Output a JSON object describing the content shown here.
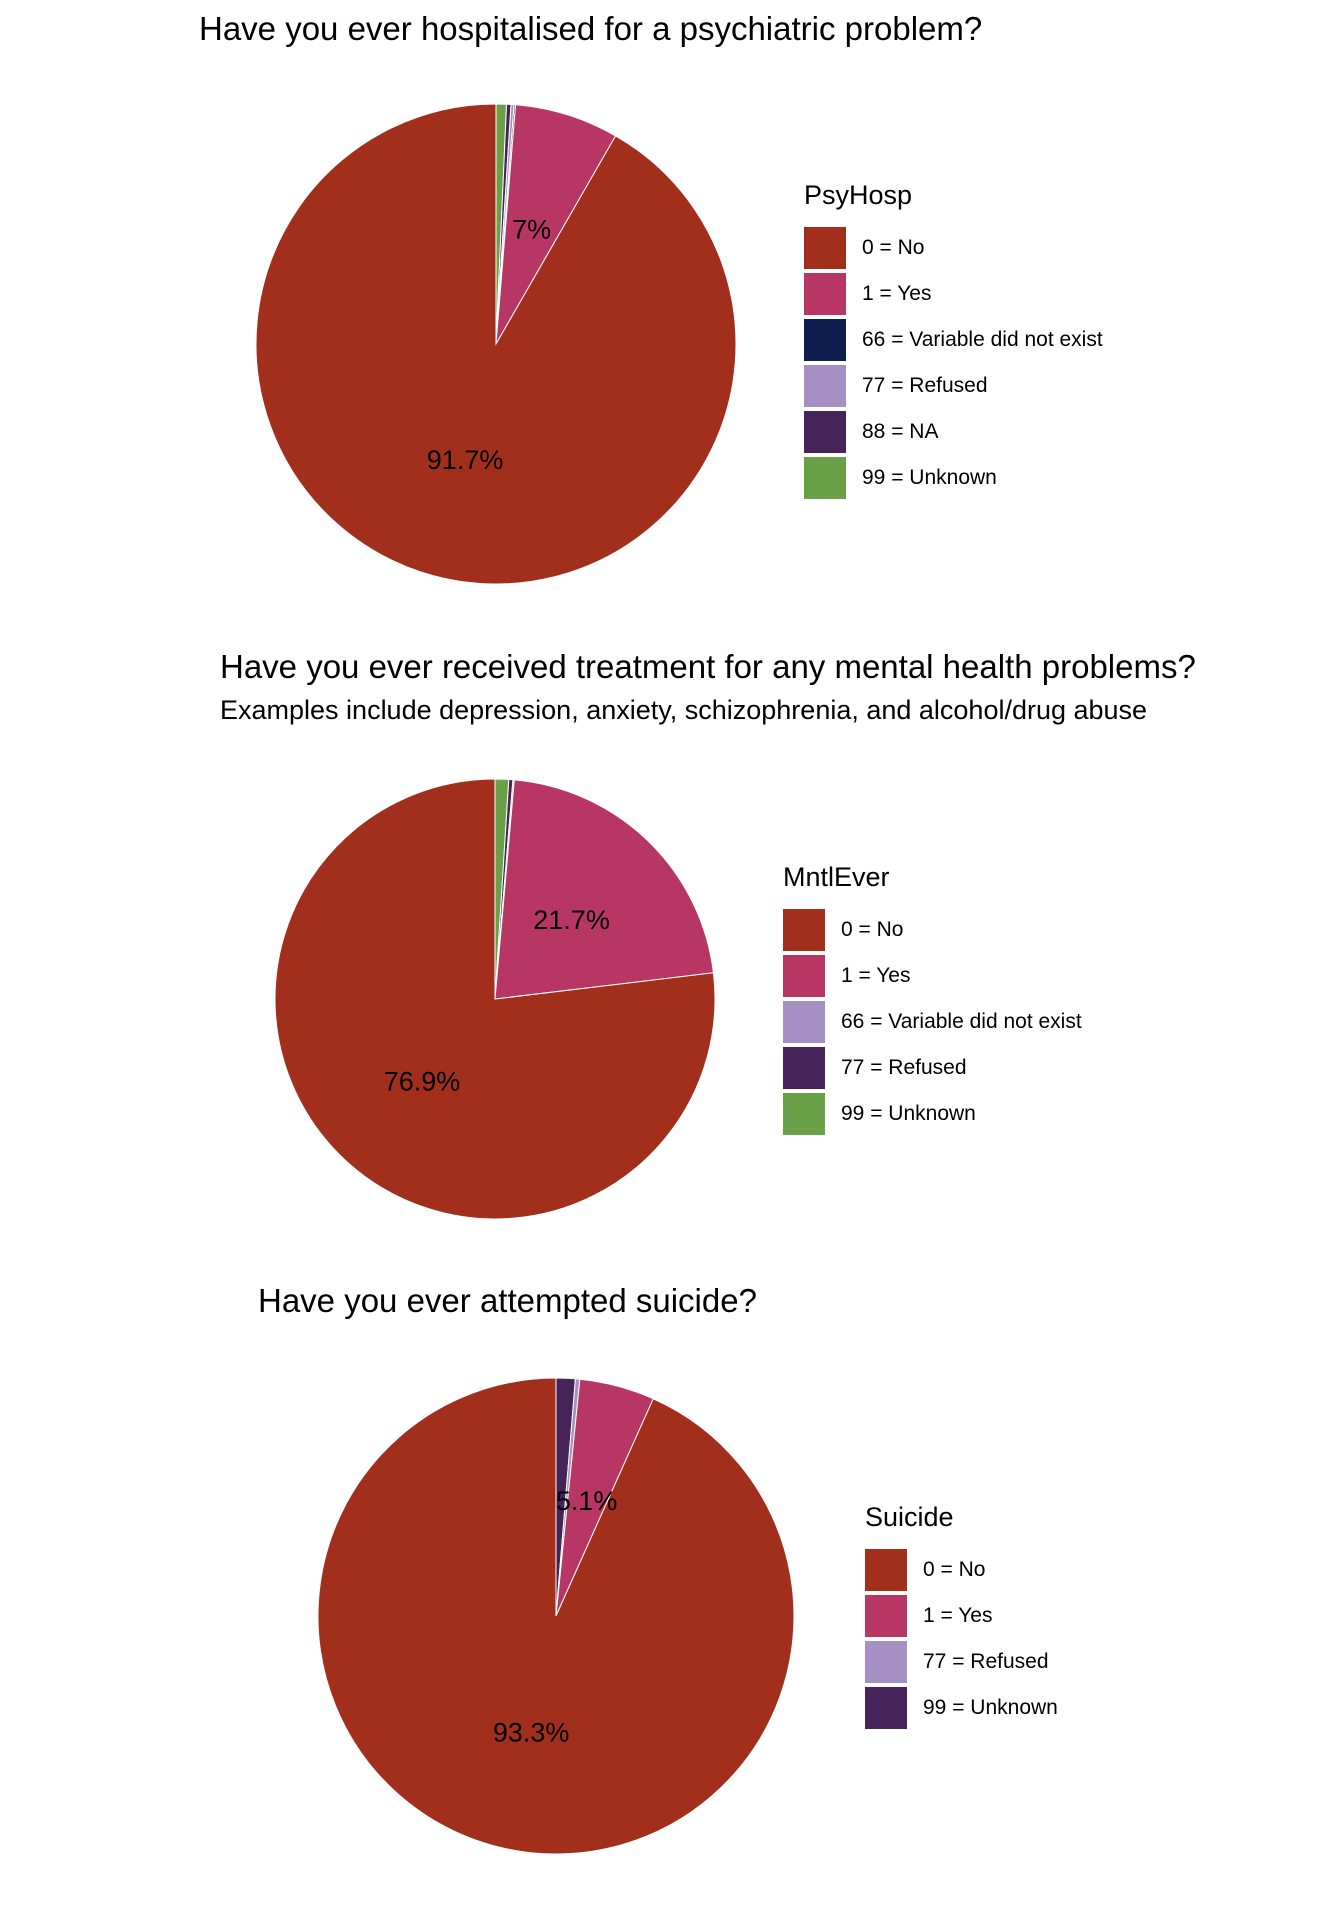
{
  "chart_data": [
    {
      "type": "pie",
      "title": "Have you ever hospitalised for a psychiatric problem?",
      "subtitle": "",
      "legend_title": "PsyHosp",
      "legend_position": "right",
      "categories": [
        "0 = No",
        "1 = Yes",
        "66 = Variable did not exist",
        "77 = Refused",
        "88 = NA",
        "99 = Unknown"
      ],
      "values": [
        91.7,
        7.0,
        0.1,
        0.2,
        0.3,
        0.7
      ],
      "colors": [
        "#A12F1C",
        "#B73663",
        "#0F1E4F",
        "#A68FC3",
        "#462359",
        "#6AA047"
      ],
      "data_labels": [
        "91.7%",
        "7%",
        "",
        "",
        "",
        ""
      ]
    },
    {
      "type": "pie",
      "title": "Have you ever received treatment for any mental health problems?",
      "subtitle": "Examples include depression, anxiety, schizophrenia, and alcohol/drug abuse",
      "legend_title": "MntlEver",
      "legend_position": "right",
      "categories": [
        "0 = No",
        "1 = Yes",
        "66 = Variable did not exist",
        "77 = Refused",
        "99 = Unknown"
      ],
      "values": [
        76.9,
        21.7,
        0.1,
        0.3,
        1.0
      ],
      "colors": [
        "#A12F1C",
        "#B73663",
        "#A68FC3",
        "#462359",
        "#6AA047"
      ],
      "data_labels": [
        "76.9%",
        "21.7%",
        "",
        "",
        ""
      ]
    },
    {
      "type": "pie",
      "title": "Have you ever attempted suicide?",
      "subtitle": "",
      "legend_title": "Suicide",
      "legend_position": "right",
      "categories": [
        "0 = No",
        "1 = Yes",
        "77 = Refused",
        "99 = Unknown"
      ],
      "values": [
        93.3,
        5.1,
        0.3,
        1.3
      ],
      "colors": [
        "#A12F1C",
        "#B73663",
        "#A68FC3",
        "#462359"
      ],
      "data_labels": [
        "93.3%",
        "5.1%",
        "",
        ""
      ]
    }
  ]
}
